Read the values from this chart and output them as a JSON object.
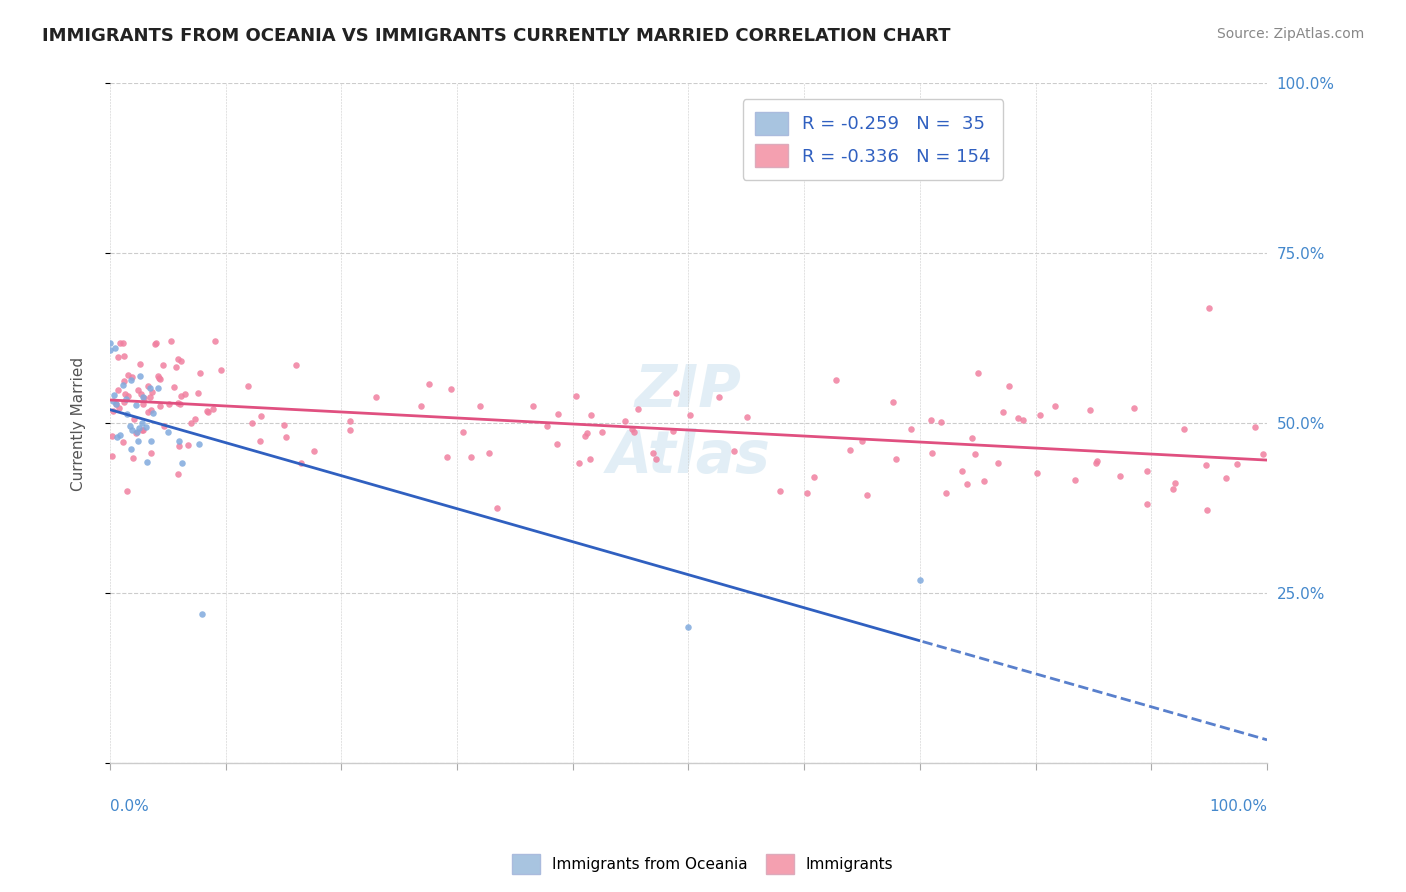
{
  "title": "IMMIGRANTS FROM OCEANIA VS IMMIGRANTS CURRENTLY MARRIED CORRELATION CHART",
  "source": "Source: ZipAtlas.com",
  "ylabel": "Currently Married",
  "legend_blue_r": "R = -0.259",
  "legend_blue_n": "N =  35",
  "legend_pink_r": "R = -0.336",
  "legend_pink_n": "N = 154",
  "blue_scatter_color": "#80aadd",
  "pink_scatter_color": "#f080a0",
  "blue_patch_color": "#a8c4e0",
  "pink_patch_color": "#f4a0b0",
  "blue_line_color": "#3060c0",
  "pink_line_color": "#e05080",
  "legend_text_color": "#3060c0",
  "axis_label_color": "#4488cc",
  "ylabel_color": "#555555",
  "title_color": "#222222",
  "source_color": "#888888",
  "watermark_color": "#d0e4f0",
  "grid_color": "#cccccc",
  "bottom_border_color": "#cccccc"
}
